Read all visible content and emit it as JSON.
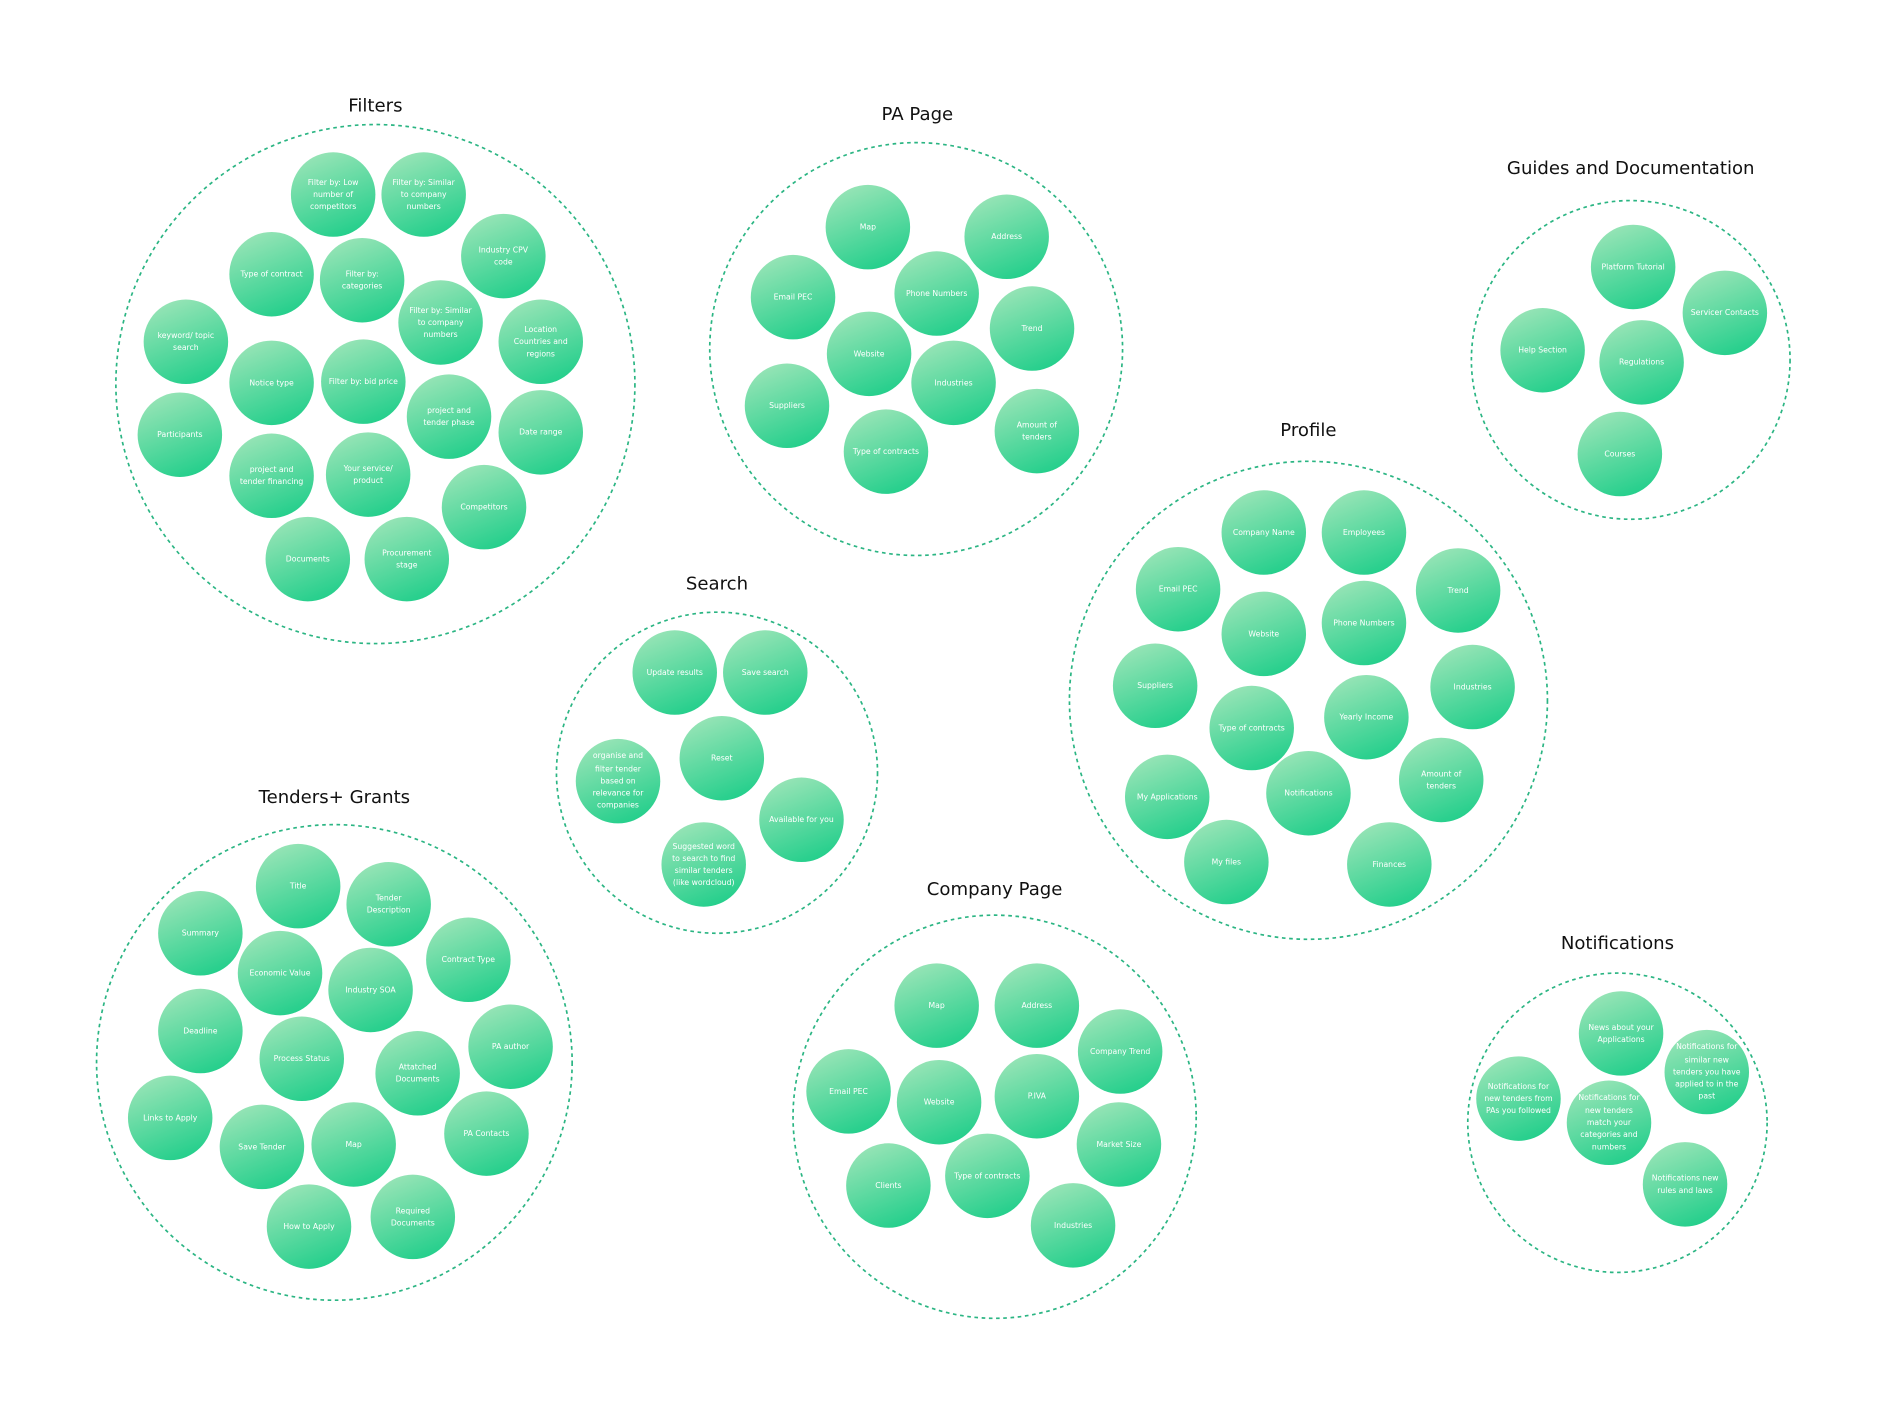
{
  "groups": [
    {
      "title": "Filters",
      "items": [
        "Filter by: Low number of competitors",
        "Filter by: Similar to company numbers",
        "Industry CPV  code",
        "Type of contract",
        "Filter by: categories",
        "Filter by: Similar to company numbers",
        "Location Countries  and regions",
        "keyword/ topic search",
        "Notice type",
        "Filter by: bid price",
        "project  and tender phase",
        "Participants",
        "Date range",
        "project and tender financing",
        "Your service/ product",
        "Competitors",
        "Documents",
        "Procurement  stage"
      ]
    },
    {
      "title": "PA Page",
      "items": [
        "Map",
        "Address",
        "Email PEC",
        "Phone Numbers",
        "Trend",
        "Website",
        "Industries",
        "Suppliers",
        "Type of contracts",
        "Amount of tenders"
      ]
    },
    {
      "title": "Guides and Documentation",
      "items": [
        "Platform Tutorial",
        "Servicer Contacts",
        "Help Section",
        "Regulations",
        "Courses"
      ]
    },
    {
      "title": "Profile",
      "items": [
        "Company Name",
        "Employees",
        "Email PEC",
        "Trend",
        "Website",
        "Phone Numbers",
        "Suppliers",
        "Industries",
        "Type of contracts",
        "Yearly Income",
        "Notifications",
        "Amount of tenders",
        "My Applications",
        "My files",
        "Finances"
      ]
    },
    {
      "title": "Search",
      "items": [
        "Update results",
        "Save search",
        "organise and filter tender based on relevance for companies",
        "Reset",
        "Available  for you",
        "Suggested word to search to find similar tenders (like wordcloud)"
      ]
    },
    {
      "title": "Tenders+ Grants",
      "items": [
        "Title",
        "Tender Description",
        "Summary",
        "Economic Value",
        "Industry SOA",
        "Contract Type",
        "Deadline",
        "Process Status",
        "Attatched Documents",
        "PA author",
        "Links to Apply",
        "Save Tender",
        "Map",
        "PA Contacts",
        "How to Apply",
        "Required Documents"
      ]
    },
    {
      "title": "Company Page",
      "items": [
        "Map",
        "Address",
        "Company Trend",
        "Email PEC",
        "Website",
        "P.IVA",
        "Market Size",
        "Clients",
        "Type of contracts",
        "Industries"
      ]
    },
    {
      "title": "Notifications",
      "items": [
        "News about your Applications",
        "Notifications for similar new tenders you have applied to in the past",
        "Notifications for new tenders from PAs you followed",
        "Notifications for new tenders match your categories and numbers",
        "Notifications new rules and laws"
      ]
    }
  ]
}
